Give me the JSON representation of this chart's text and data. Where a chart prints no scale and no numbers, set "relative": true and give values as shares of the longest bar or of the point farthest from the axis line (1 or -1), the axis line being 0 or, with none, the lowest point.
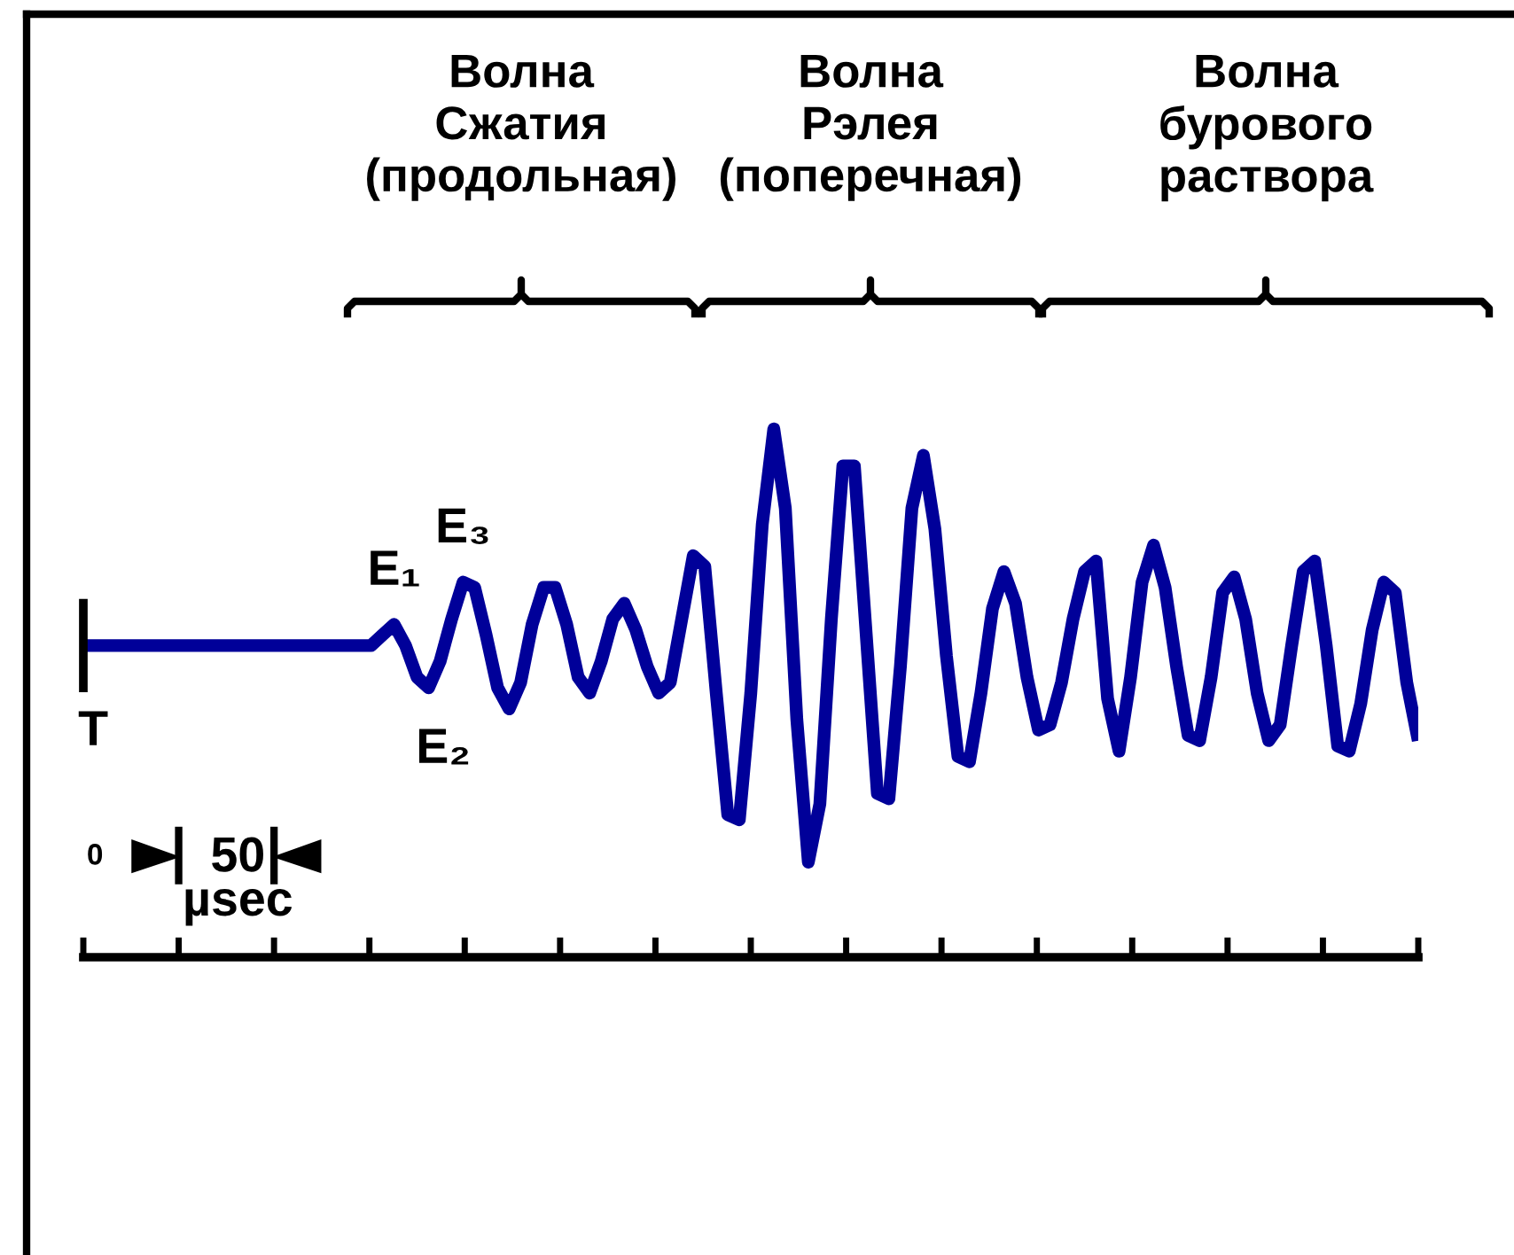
{
  "chart_data": {
    "type": "line",
    "relative": true,
    "categories": [
      null,
      null,
      null,
      null,
      null,
      null,
      null,
      null,
      null,
      null,
      null,
      null,
      null,
      null,
      null,
      null,
      null,
      null,
      null,
      null,
      null,
      null,
      null,
      null,
      null,
      null,
      null,
      null,
      null,
      null,
      null,
      null,
      null,
      null,
      null,
      null,
      null,
      null,
      null,
      null,
      null,
      null,
      null,
      null,
      null,
      null,
      null,
      null,
      null,
      null,
      null,
      null,
      null,
      null,
      null,
      null,
      null,
      null,
      null,
      null,
      null,
      null,
      null,
      null,
      null,
      null,
      null,
      null,
      null,
      null,
      null,
      null,
      null,
      null,
      null,
      null,
      null,
      null,
      null,
      null,
      null,
      null,
      null,
      null,
      null,
      null,
      null,
      null,
      null,
      null,
      null,
      null,
      null,
      null,
      null,
      null,
      null,
      null,
      null,
      null,
      null,
      null,
      null,
      null,
      null,
      null,
      null,
      null,
      null,
      null,
      null,
      null,
      null,
      null,
      null,
      null,
      null
    ],
    "series": [
      {
        "color": "#000099",
        "values": [
          0.59,
          0.59,
          0.59,
          0.59,
          0.59,
          0.59,
          0.59,
          0.59,
          0.59,
          0.59,
          0.59,
          0.59,
          0.59,
          0.59,
          0.59,
          0.59,
          0.59,
          0.59,
          0.59,
          0.59,
          0.59,
          0.59,
          0.59,
          0.59,
          0.59,
          0.59,
          0.61,
          0.63,
          0.59,
          0.53,
          0.51,
          0.56,
          0.64,
          0.71,
          0.7,
          0.61,
          0.51,
          0.47,
          0.52,
          0.63,
          0.7,
          0.7,
          0.63,
          0.53,
          0.5,
          0.56,
          0.64,
          0.67,
          0.62,
          0.55,
          0.5,
          0.52,
          0.64,
          0.76,
          0.74,
          0.5,
          0.27,
          0.26,
          0.5,
          0.82,
          1.0,
          0.85,
          0.45,
          0.18,
          0.29,
          0.64,
          0.93,
          0.93,
          0.62,
          0.31,
          0.3,
          0.55,
          0.85,
          0.95,
          0.81,
          0.57,
          0.38,
          0.37,
          0.5,
          0.66,
          0.73,
          0.67,
          0.53,
          0.43,
          0.44,
          0.52,
          0.64,
          0.73,
          0.75,
          0.49,
          0.39,
          0.53,
          0.71,
          0.78,
          0.7,
          0.55,
          0.42,
          0.41,
          0.53,
          0.69,
          0.72,
          0.64,
          0.5,
          0.41,
          0.44,
          0.59,
          0.73,
          0.75,
          0.59,
          0.4,
          0.39,
          0.48,
          0.62,
          0.71,
          0.69,
          0.52,
          0.41
        ]
      }
    ],
    "annotations": [
      "Волна\nСжатия\n(продольная)",
      "Волна\nРэлея\n(поперечная)",
      "Волна\nбурового\nраствора",
      "T",
      "E₁",
      "E₂",
      "E₃",
      "0",
      "50\nµsec"
    ],
    "grid": false,
    "legend": false,
    "marker": "none",
    "line_style": "solid"
  }
}
